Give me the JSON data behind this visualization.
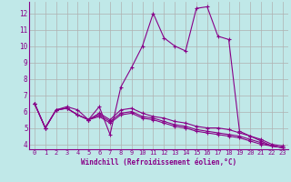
{
  "title": "",
  "xlabel": "Windchill (Refroidissement éolien,°C)",
  "ylabel": "",
  "xlim": [
    -0.5,
    23.5
  ],
  "ylim": [
    3.7,
    12.7
  ],
  "yticks": [
    4,
    5,
    6,
    7,
    8,
    9,
    10,
    11,
    12
  ],
  "xticks": [
    0,
    1,
    2,
    3,
    4,
    5,
    6,
    7,
    8,
    9,
    10,
    11,
    12,
    13,
    14,
    15,
    16,
    17,
    18,
    19,
    20,
    21,
    22,
    23
  ],
  "bg_color": "#c0e8e8",
  "grid_color": "#b0b0b0",
  "line_color": "#880088",
  "series": [
    [
      6.5,
      5.0,
      6.1,
      6.3,
      6.1,
      5.5,
      6.3,
      4.6,
      7.5,
      8.7,
      10.0,
      12.0,
      10.5,
      10.0,
      9.7,
      12.3,
      12.4,
      10.6,
      10.4,
      4.8,
      4.5,
      4.2,
      3.9,
      3.8
    ],
    [
      6.5,
      5.0,
      6.1,
      6.2,
      5.8,
      5.5,
      5.9,
      5.5,
      6.1,
      6.2,
      5.9,
      5.7,
      5.6,
      5.4,
      5.3,
      5.1,
      5.0,
      5.0,
      4.9,
      4.7,
      4.5,
      4.3,
      4.0,
      3.9
    ],
    [
      6.5,
      5.0,
      6.1,
      6.2,
      5.8,
      5.5,
      5.8,
      5.4,
      5.9,
      6.0,
      5.7,
      5.6,
      5.4,
      5.2,
      5.1,
      4.9,
      4.8,
      4.7,
      4.6,
      4.5,
      4.3,
      4.1,
      3.9,
      3.8
    ],
    [
      6.5,
      5.0,
      6.1,
      6.2,
      5.8,
      5.5,
      5.7,
      5.3,
      5.8,
      5.9,
      5.6,
      5.5,
      5.3,
      5.1,
      5.0,
      4.8,
      4.7,
      4.6,
      4.5,
      4.4,
      4.2,
      4.0,
      3.9,
      3.8
    ]
  ],
  "font_size_x": 5.0,
  "font_size_y": 5.5,
  "font_size_label": 5.5
}
